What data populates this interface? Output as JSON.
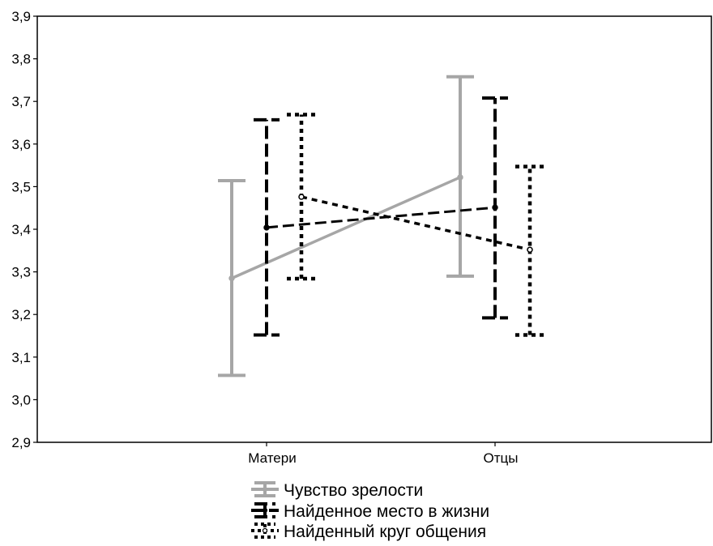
{
  "chart_data": {
    "type": "line",
    "title": "",
    "xlabel": "",
    "ylabel": "",
    "categories": [
      "Матери",
      "Отцы"
    ],
    "ylim": [
      2.9,
      3.9
    ],
    "yticks": [
      "2,9",
      "3,0",
      "3,1",
      "3,2",
      "3,3",
      "3,4",
      "3,5",
      "3,6",
      "3,7",
      "3,8",
      "3,9"
    ],
    "grid": false,
    "legend_position": "bottom",
    "series": [
      {
        "name": "Чувство зрелости",
        "color": "#a6a6a6",
        "line_style": "solid",
        "marker": "circle",
        "means": [
          3.285,
          3.522
        ],
        "lower": [
          3.057,
          3.29
        ],
        "upper": [
          3.514,
          3.758
        ]
      },
      {
        "name": "Найденное место в жизни",
        "color": "#000000",
        "line_style": "dashed",
        "marker": "circle",
        "means": [
          3.404,
          3.451
        ],
        "lower": [
          3.152,
          3.192
        ],
        "upper": [
          3.657,
          3.708
        ]
      },
      {
        "name": "Найденный круг общения",
        "color": "#000000",
        "line_style": "dotted",
        "marker": "open-circle",
        "means": [
          3.476,
          3.352
        ],
        "lower": [
          3.284,
          3.152
        ],
        "upper": [
          3.669,
          3.547
        ]
      }
    ]
  }
}
